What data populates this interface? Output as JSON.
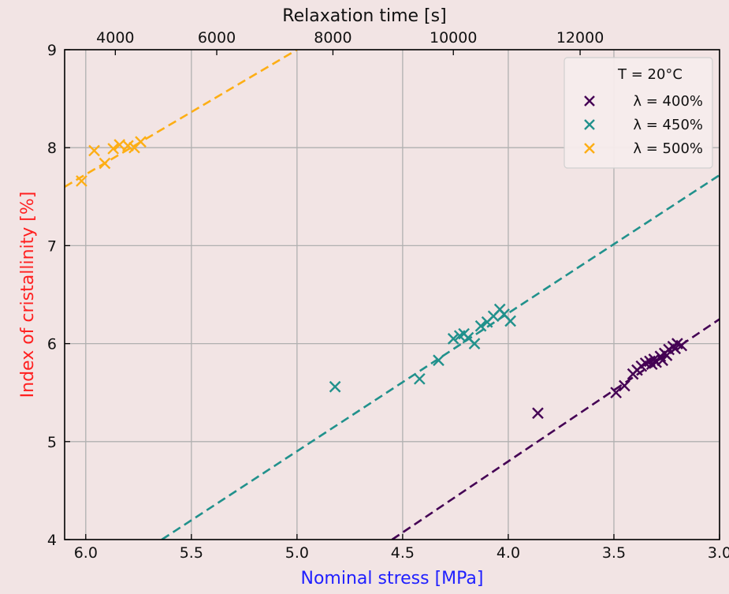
{
  "chart_data": {
    "type": "scatter",
    "x_axis": {
      "label": "Nominal stress [MPa]",
      "label_color": "#1f1fff",
      "range": [
        6.1,
        3.0
      ],
      "ticks": [
        6.0,
        5.5,
        5.0,
        4.5,
        4.0,
        3.5,
        3.0
      ],
      "tick_labels": [
        "6.0",
        "5.5",
        "5.0",
        "4.5",
        "4.0",
        "3.5",
        "3.0"
      ],
      "inverted": true
    },
    "top_axis": {
      "label": "Relaxation time [s]",
      "ticks": [
        4000,
        6000,
        8000,
        10000,
        12000
      ],
      "tick_labels": [
        "4000",
        "6000",
        "8000",
        "10000",
        "12000"
      ],
      "tick_positions_nominal_stress": [
        5.86,
        5.38,
        4.83,
        4.26,
        3.66
      ]
    },
    "y_axis": {
      "label": "Index of cristallinity [%]",
      "label_color": "#ff2020",
      "range": [
        4,
        9
      ],
      "ticks": [
        4,
        5,
        6,
        7,
        8,
        9
      ],
      "tick_labels": [
        "4",
        "5",
        "6",
        "7",
        "8",
        "9"
      ]
    },
    "grid": true,
    "legend": {
      "placement": "top-right",
      "title": "T = 20°C",
      "entries": [
        "λ = 400%",
        "λ = 450%",
        "λ = 500%"
      ]
    },
    "series": [
      {
        "name": "λ = 400%",
        "color": "#440154",
        "marker": "x",
        "points": [
          [
            3.86,
            5.29
          ],
          [
            3.49,
            5.5
          ],
          [
            3.45,
            5.57
          ],
          [
            3.41,
            5.69
          ],
          [
            3.39,
            5.73
          ],
          [
            3.37,
            5.77
          ],
          [
            3.35,
            5.8
          ],
          [
            3.33,
            5.82
          ],
          [
            3.32,
            5.79
          ],
          [
            3.31,
            5.84
          ],
          [
            3.3,
            5.81
          ],
          [
            3.28,
            5.87
          ],
          [
            3.27,
            5.83
          ],
          [
            3.26,
            5.9
          ],
          [
            3.25,
            5.88
          ],
          [
            3.24,
            5.94
          ],
          [
            3.22,
            5.97
          ],
          [
            3.21,
            5.95
          ],
          [
            3.2,
            6.0
          ],
          [
            3.18,
            5.98
          ]
        ],
        "fit_line": [
          [
            4.55,
            4.0
          ],
          [
            3.0,
            6.25
          ]
        ]
      },
      {
        "name": "λ = 450%",
        "color": "#21918c",
        "marker": "x",
        "points": [
          [
            4.82,
            5.56
          ],
          [
            4.42,
            5.64
          ],
          [
            4.33,
            5.83
          ],
          [
            4.26,
            6.05
          ],
          [
            4.23,
            6.08
          ],
          [
            4.21,
            6.1
          ],
          [
            4.19,
            6.06
          ],
          [
            4.16,
            6.0
          ],
          [
            4.13,
            6.18
          ],
          [
            4.1,
            6.22
          ],
          [
            4.07,
            6.28
          ],
          [
            4.04,
            6.35
          ],
          [
            4.02,
            6.3
          ],
          [
            3.99,
            6.23
          ]
        ],
        "fit_line": [
          [
            5.64,
            4.0
          ],
          [
            3.0,
            7.72
          ]
        ]
      },
      {
        "name": "λ = 500%",
        "color": "#fdae14",
        "marker": "x",
        "points": [
          [
            6.02,
            7.66
          ],
          [
            5.96,
            7.97
          ],
          [
            5.91,
            7.84
          ],
          [
            5.87,
            7.99
          ],
          [
            5.84,
            8.03
          ],
          [
            5.8,
            8.02
          ],
          [
            5.77,
            8.0
          ],
          [
            5.74,
            8.06
          ]
        ],
        "fit_line": [
          [
            6.1,
            7.6
          ],
          [
            5.0,
            9.0
          ]
        ]
      }
    ]
  }
}
